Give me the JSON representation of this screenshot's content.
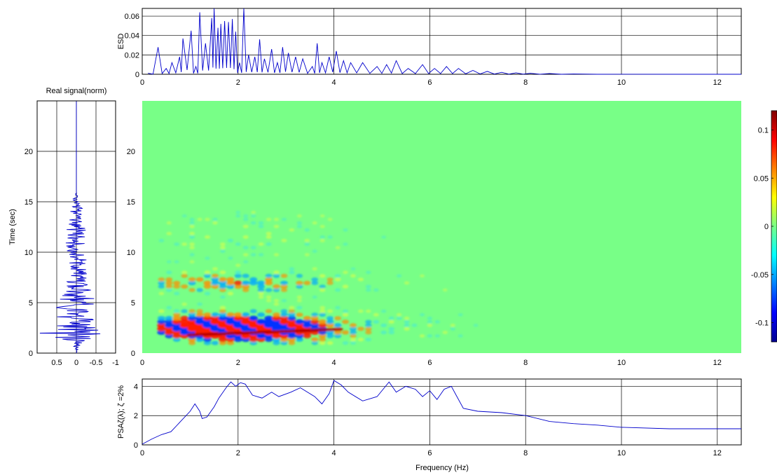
{
  "figure": {
    "spectrogram_x_ticks": [
      "0",
      "2",
      "4",
      "6",
      "8",
      "10",
      "12"
    ],
    "spectrogram_y_ticks": [
      "0",
      "5",
      "10",
      "15",
      "20"
    ]
  },
  "chart_data": [
    {
      "id": "esd",
      "type": "line",
      "ylabel": "ESD",
      "xlabel": "",
      "xlim": [
        0,
        12.5
      ],
      "ylim": [
        0,
        0.068
      ],
      "x_ticks": [
        "0",
        "2",
        "4",
        "6",
        "8",
        "10",
        "12"
      ],
      "y_ticks": [
        "0",
        "0.02",
        "0.04",
        "0.06"
      ],
      "grid": true,
      "line_color": "#0000cc",
      "peaks": [
        {
          "x": 0.12,
          "y": 0.001
        },
        {
          "x": 0.33,
          "y": 0.028
        },
        {
          "x": 0.5,
          "y": 0.006
        },
        {
          "x": 0.62,
          "y": 0.012
        },
        {
          "x": 0.78,
          "y": 0.018
        },
        {
          "x": 0.85,
          "y": 0.037
        },
        {
          "x": 1.02,
          "y": 0.045
        },
        {
          "x": 1.12,
          "y": 0.008
        },
        {
          "x": 1.2,
          "y": 0.064
        },
        {
          "x": 1.32,
          "y": 0.032
        },
        {
          "x": 1.45,
          "y": 0.058
        },
        {
          "x": 1.5,
          "y": 0.068
        },
        {
          "x": 1.58,
          "y": 0.048
        },
        {
          "x": 1.64,
          "y": 0.052
        },
        {
          "x": 1.72,
          "y": 0.055
        },
        {
          "x": 1.8,
          "y": 0.054
        },
        {
          "x": 1.88,
          "y": 0.057
        },
        {
          "x": 1.95,
          "y": 0.044
        },
        {
          "x": 2.03,
          "y": 0.012
        },
        {
          "x": 2.12,
          "y": 0.068
        },
        {
          "x": 2.22,
          "y": 0.02
        },
        {
          "x": 2.35,
          "y": 0.018
        },
        {
          "x": 2.45,
          "y": 0.036
        },
        {
          "x": 2.55,
          "y": 0.016
        },
        {
          "x": 2.7,
          "y": 0.026
        },
        {
          "x": 2.82,
          "y": 0.012
        },
        {
          "x": 2.93,
          "y": 0.028
        },
        {
          "x": 3.05,
          "y": 0.022
        },
        {
          "x": 3.2,
          "y": 0.018
        },
        {
          "x": 3.35,
          "y": 0.016
        },
        {
          "x": 3.55,
          "y": 0.008
        },
        {
          "x": 3.65,
          "y": 0.032
        },
        {
          "x": 3.75,
          "y": 0.012
        },
        {
          "x": 3.9,
          "y": 0.018
        },
        {
          "x": 4.05,
          "y": 0.024
        },
        {
          "x": 4.2,
          "y": 0.014
        },
        {
          "x": 4.35,
          "y": 0.012
        },
        {
          "x": 4.6,
          "y": 0.012
        },
        {
          "x": 4.9,
          "y": 0.008
        },
        {
          "x": 5.1,
          "y": 0.01
        },
        {
          "x": 5.3,
          "y": 0.014
        },
        {
          "x": 5.55,
          "y": 0.006
        },
        {
          "x": 5.85,
          "y": 0.01
        },
        {
          "x": 6.1,
          "y": 0.006
        },
        {
          "x": 6.35,
          "y": 0.008
        },
        {
          "x": 6.6,
          "y": 0.006
        },
        {
          "x": 6.9,
          "y": 0.004
        },
        {
          "x": 7.2,
          "y": 0.003
        },
        {
          "x": 7.5,
          "y": 0.002
        },
        {
          "x": 7.8,
          "y": 0.0015
        },
        {
          "x": 8.1,
          "y": 0.001
        },
        {
          "x": 8.5,
          "y": 0.0008
        },
        {
          "x": 9.0,
          "y": 0.0003
        },
        {
          "x": 10.0,
          "y": 0.0001
        },
        {
          "x": 12.5,
          "y": 0.0
        }
      ]
    },
    {
      "id": "real_signal",
      "type": "line",
      "title": "Real signal(norm)",
      "ylabel": "Time (sec)",
      "xlabel": "",
      "x_ticks": [
        "0.5",
        "0",
        "-0.5",
        "-1"
      ],
      "y_ticks": [
        "0",
        "5",
        "10",
        "15",
        "20"
      ],
      "xlim": [
        1,
        -1
      ],
      "ylim": [
        0,
        25
      ],
      "grid": true,
      "line_color": "#0000cc",
      "amplitude_envelope": [
        {
          "t": 0,
          "a": 0.0
        },
        {
          "t": 0.5,
          "a": 0.08
        },
        {
          "t": 1,
          "a": 0.2
        },
        {
          "t": 1.5,
          "a": 0.55
        },
        {
          "t": 2,
          "a": 1.0
        },
        {
          "t": 2.5,
          "a": 0.8
        },
        {
          "t": 3,
          "a": 0.6
        },
        {
          "t": 3.5,
          "a": 0.55
        },
        {
          "t": 4,
          "a": 0.6
        },
        {
          "t": 4.5,
          "a": 0.55
        },
        {
          "t": 5,
          "a": 0.5
        },
        {
          "t": 6,
          "a": 0.4
        },
        {
          "t": 7,
          "a": 0.35
        },
        {
          "t": 8,
          "a": 0.3
        },
        {
          "t": 9,
          "a": 0.28
        },
        {
          "t": 10,
          "a": 0.25
        },
        {
          "t": 11,
          "a": 0.3
        },
        {
          "t": 12,
          "a": 0.28
        },
        {
          "t": 13,
          "a": 0.25
        },
        {
          "t": 14,
          "a": 0.2
        },
        {
          "t": 15,
          "a": 0.12
        },
        {
          "t": 15.6,
          "a": 0.05
        },
        {
          "t": 16,
          "a": 0.0
        },
        {
          "t": 25,
          "a": 0.0
        }
      ]
    },
    {
      "id": "spectrogram",
      "type": "heatmap",
      "xlim": [
        0,
        12.5
      ],
      "ylim": [
        0,
        25
      ],
      "colormap": "jet",
      "colorbar": {
        "range": [
          -0.12,
          0.12
        ],
        "ticks": [
          "0.1",
          "0.05",
          "0",
          "-0.05",
          "-0.1"
        ]
      },
      "background_color": "#78ff87"
    },
    {
      "id": "psa",
      "type": "line",
      "ylabel": "PSAζ(λ); ζ =2%",
      "xlabel": "Frequency (Hz)",
      "xlim": [
        0,
        12.5
      ],
      "ylim": [
        0,
        4.5
      ],
      "x_ticks": [
        "0",
        "2",
        "4",
        "6",
        "8",
        "10",
        "12"
      ],
      "y_ticks": [
        "0",
        "2",
        "4"
      ],
      "grid": true,
      "line_color": "#0000cc",
      "points": [
        {
          "x": 0,
          "y": 0.05
        },
        {
          "x": 0.2,
          "y": 0.4
        },
        {
          "x": 0.4,
          "y": 0.7
        },
        {
          "x": 0.6,
          "y": 0.9
        },
        {
          "x": 0.8,
          "y": 1.6
        },
        {
          "x": 1.0,
          "y": 2.3
        },
        {
          "x": 1.1,
          "y": 2.8
        },
        {
          "x": 1.2,
          "y": 2.3
        },
        {
          "x": 1.25,
          "y": 1.8
        },
        {
          "x": 1.35,
          "y": 1.9
        },
        {
          "x": 1.5,
          "y": 2.6
        },
        {
          "x": 1.6,
          "y": 3.2
        },
        {
          "x": 1.75,
          "y": 3.9
        },
        {
          "x": 1.85,
          "y": 4.3
        },
        {
          "x": 1.95,
          "y": 4.0
        },
        {
          "x": 2.05,
          "y": 4.25
        },
        {
          "x": 2.15,
          "y": 4.15
        },
        {
          "x": 2.3,
          "y": 3.4
        },
        {
          "x": 2.5,
          "y": 3.2
        },
        {
          "x": 2.7,
          "y": 3.6
        },
        {
          "x": 2.85,
          "y": 3.3
        },
        {
          "x": 3.1,
          "y": 3.6
        },
        {
          "x": 3.3,
          "y": 3.9
        },
        {
          "x": 3.6,
          "y": 3.3
        },
        {
          "x": 3.75,
          "y": 2.8
        },
        {
          "x": 3.9,
          "y": 3.5
        },
        {
          "x": 4.0,
          "y": 4.4
        },
        {
          "x": 4.15,
          "y": 4.1
        },
        {
          "x": 4.3,
          "y": 3.6
        },
        {
          "x": 4.6,
          "y": 3.0
        },
        {
          "x": 4.9,
          "y": 3.3
        },
        {
          "x": 5.15,
          "y": 4.3
        },
        {
          "x": 5.3,
          "y": 3.6
        },
        {
          "x": 5.5,
          "y": 4.0
        },
        {
          "x": 5.7,
          "y": 3.8
        },
        {
          "x": 5.85,
          "y": 3.3
        },
        {
          "x": 6.0,
          "y": 3.7
        },
        {
          "x": 6.15,
          "y": 3.1
        },
        {
          "x": 6.3,
          "y": 3.8
        },
        {
          "x": 6.45,
          "y": 4.0
        },
        {
          "x": 6.55,
          "y": 3.4
        },
        {
          "x": 6.7,
          "y": 2.5
        },
        {
          "x": 7.0,
          "y": 2.3
        },
        {
          "x": 7.5,
          "y": 2.2
        },
        {
          "x": 8.0,
          "y": 2.0
        },
        {
          "x": 8.5,
          "y": 1.6
        },
        {
          "x": 9.0,
          "y": 1.45
        },
        {
          "x": 9.5,
          "y": 1.35
        },
        {
          "x": 10.0,
          "y": 1.2
        },
        {
          "x": 11.0,
          "y": 1.1
        },
        {
          "x": 12.0,
          "y": 1.1
        },
        {
          "x": 12.5,
          "y": 1.1
        }
      ]
    }
  ]
}
